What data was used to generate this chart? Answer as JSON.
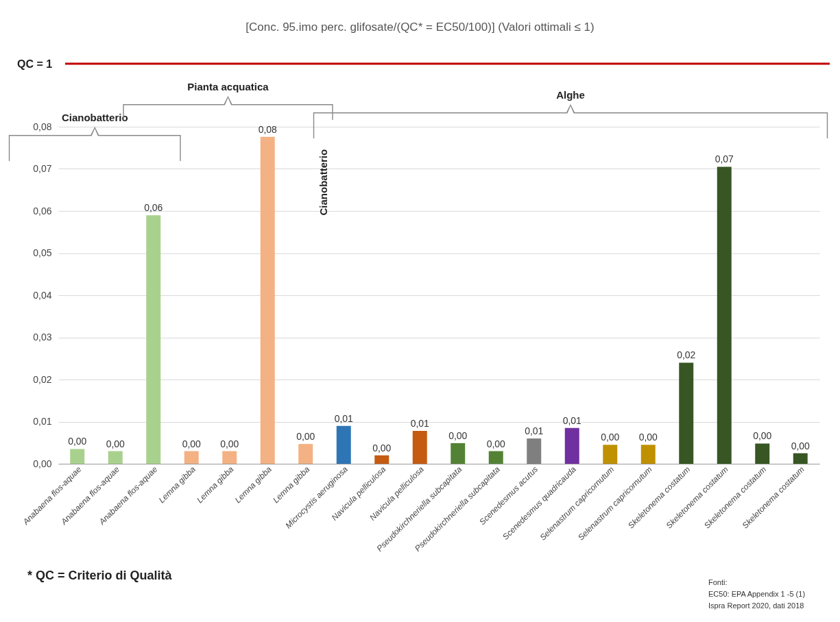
{
  "chart_data": {
    "type": "bar",
    "title": "[Conc. 95.imo perc. glifosate/(QC* = EC50/100)] (Valori ottimali ≤ 1)",
    "categories": [
      "Anabaena flos-aquae",
      "Anabaena flos-aquae",
      "Anabaena flos-aquae",
      "Lemna gibba",
      "Lemna gibba",
      "Lemna gibba",
      "Lemna gibba",
      "Microcystis aeruginosa",
      "Navicula pelliculosa",
      "Navicula pelliculosa",
      "Pseudokirchneriella subcapitata",
      "Pseudokirchneriella subcapitata",
      "Scenedesmus acutus",
      "Scenedesmus quadricauda",
      "Selenastrum capricornutum",
      "Selenastrum capricornutum",
      "Skeletonema costatum",
      "Skeletonema costatum",
      "Skeletonema costatum",
      "Skeletonema costatum"
    ],
    "values": [
      0.0035,
      0.003,
      0.059,
      0.003,
      0.003,
      0.0776,
      0.0047,
      0.009,
      0.002,
      0.0078,
      0.0049,
      0.003,
      0.006,
      0.0085,
      0.0045,
      0.0045,
      0.024,
      0.0705,
      0.0048,
      0.0025
    ],
    "colors": [
      "#a9d18e",
      "#a9d18e",
      "#a9d18e",
      "#f4b183",
      "#f4b183",
      "#f4b183",
      "#f4b183",
      "#2e75b6",
      "#c55a11",
      "#c55a11",
      "#548235",
      "#548235",
      "#7f7f7f",
      "#7030a0",
      "#bf9000",
      "#bf9000",
      "#375623",
      "#375623",
      "#375623",
      "#375623"
    ],
    "value_labels": [
      "0,00",
      "0,00",
      "0,06",
      "0,00",
      "0,00",
      "0,08",
      "0,00",
      "0,01",
      "0,00",
      "0,01",
      "0,00",
      "0,00",
      "0,01",
      "0,01",
      "0,00",
      "0,00",
      "0,02",
      "0,07",
      "0,00",
      "0,00"
    ],
    "ylim": [
      0,
      0.08
    ],
    "yticks": [
      {
        "value": 0,
        "label": "0,00"
      },
      {
        "value": 0.01,
        "label": "0,01"
      },
      {
        "value": 0.02,
        "label": "0,02"
      },
      {
        "value": 0.03,
        "label": "0,03"
      },
      {
        "value": 0.04,
        "label": "0,04"
      },
      {
        "value": 0.05,
        "label": "0,05"
      },
      {
        "value": 0.06,
        "label": "0,06"
      },
      {
        "value": 0.07,
        "label": "0,07"
      },
      {
        "value": 0.08,
        "label": "0,08"
      }
    ],
    "grid": "y",
    "annotations": [
      "QC = 1",
      "Cianobatterio",
      "Pianta acquatica",
      "Alghe",
      "Cianobatterio",
      "* QC = Criterio di Qualità",
      "Fonti:",
      "EC50: EPA Appendix 1 -5 (1)",
      "Ispra Report 2020, dati 2018"
    ]
  }
}
